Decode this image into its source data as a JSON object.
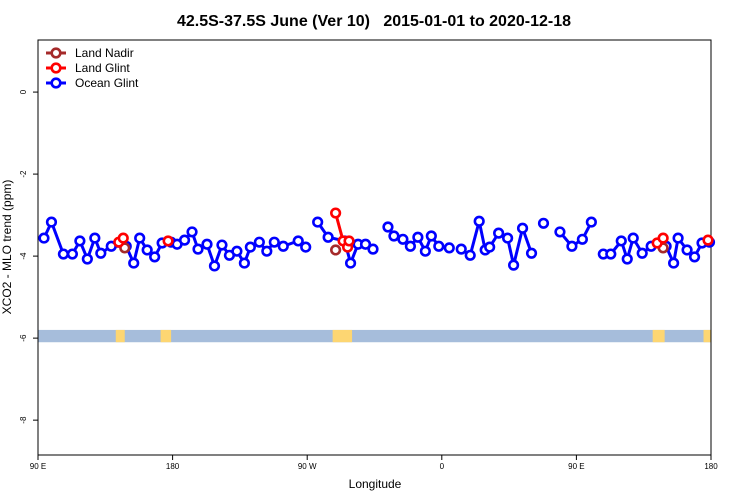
{
  "chart_data": {
    "type": "line",
    "title": "42.5S-37.5S June (Ver 10)   2015-01-01 to 2020-12-18",
    "xlabel": "Longitude",
    "ylabel": "XCO2 - MLO trend (ppm)",
    "xlim": [
      90,
      540
    ],
    "ylim": [
      -8.85,
      1.27
    ],
    "xticks": [
      {
        "value": 90,
        "label": "90 E"
      },
      180,
      {
        "value": 270,
        "label": "90 W"
      },
      {
        "value": 360,
        "label": "0"
      },
      {
        "value": 450,
        "label": "90 E"
      },
      {
        "value": 540,
        "label": "180"
      }
    ],
    "yticks": [
      0,
      -2,
      -4,
      -6,
      -8
    ],
    "legend": "top-left",
    "surface_band": {
      "ylim": [
        -5.8,
        -6.1
      ],
      "ocean_color": "#a6bddb",
      "land_color": "#fdd672",
      "land_segments": [
        [
          142,
          148
        ],
        [
          172,
          179
        ],
        [
          287,
          300
        ],
        [
          501,
          509
        ],
        [
          535,
          540
        ]
      ]
    },
    "series": [
      {
        "name": "Land Nadir",
        "color": "#a52a2a",
        "x": [
          148,
          null,
          289,
          null,
          508
        ],
        "values": [
          -3.8,
          null,
          -3.85,
          null,
          -3.8
        ]
      },
      {
        "name": "Land Glint",
        "color": "#ff0000",
        "x": [
          144,
          147,
          null,
          177,
          null,
          289,
          294,
          297,
          298,
          null,
          504,
          508,
          null,
          538
        ],
        "values": [
          -3.66,
          -3.56,
          null,
          -3.63,
          null,
          -2.95,
          -3.63,
          -3.78,
          -3.63,
          null,
          -3.68,
          -3.56,
          null,
          -3.61
        ]
      },
      {
        "name": "Ocean Glint",
        "color": "#0000ff",
        "x": [
          94,
          99,
          107,
          113,
          118,
          123,
          128,
          132,
          139,
          149,
          154,
          158,
          163,
          168,
          173,
          179,
          183,
          188,
          193,
          197,
          203,
          208,
          213,
          218,
          223,
          228,
          232,
          238,
          243,
          248,
          254,
          264,
          269,
          null,
          277,
          284,
          295,
          299,
          304,
          309,
          314,
          null,
          324,
          328,
          334,
          339,
          344,
          349,
          353,
          358,
          365,
          null,
          373,
          379,
          385,
          389,
          392,
          398,
          404,
          408,
          414,
          420,
          null,
          428,
          null,
          439,
          447,
          454,
          460,
          null,
          468,
          473,
          480,
          484,
          488,
          494,
          500,
          510,
          515,
          518,
          524,
          529,
          534,
          539
        ],
        "values": [
          -3.56,
          -3.17,
          -3.95,
          -3.95,
          -3.63,
          -4.07,
          -3.56,
          -3.93,
          -3.76,
          -3.76,
          -4.17,
          -3.56,
          -3.85,
          -4.02,
          -3.68,
          -3.66,
          -3.71,
          -3.61,
          -3.41,
          -3.83,
          -3.71,
          -4.24,
          -3.73,
          -3.98,
          -3.88,
          -4.17,
          -3.78,
          -3.66,
          -3.88,
          -3.66,
          -3.76,
          -3.63,
          -3.78,
          null,
          -3.17,
          -3.54,
          -3.63,
          -4.17,
          -3.71,
          -3.71,
          -3.83,
          null,
          -3.29,
          -3.51,
          -3.59,
          -3.76,
          -3.54,
          -3.88,
          -3.51,
          -3.76,
          -3.8,
          null,
          -3.83,
          -3.98,
          -3.15,
          -3.85,
          -3.78,
          -3.44,
          -3.56,
          -4.22,
          -3.32,
          -3.93,
          null,
          -3.2,
          null,
          -3.41,
          -3.76,
          -3.59,
          -3.17,
          null,
          -3.95,
          -3.95,
          -3.63,
          -4.07,
          -3.56,
          -3.93,
          -3.76,
          -3.76,
          -4.17,
          -3.56,
          -3.85,
          -4.02,
          -3.68,
          -3.66
        ]
      }
    ]
  }
}
